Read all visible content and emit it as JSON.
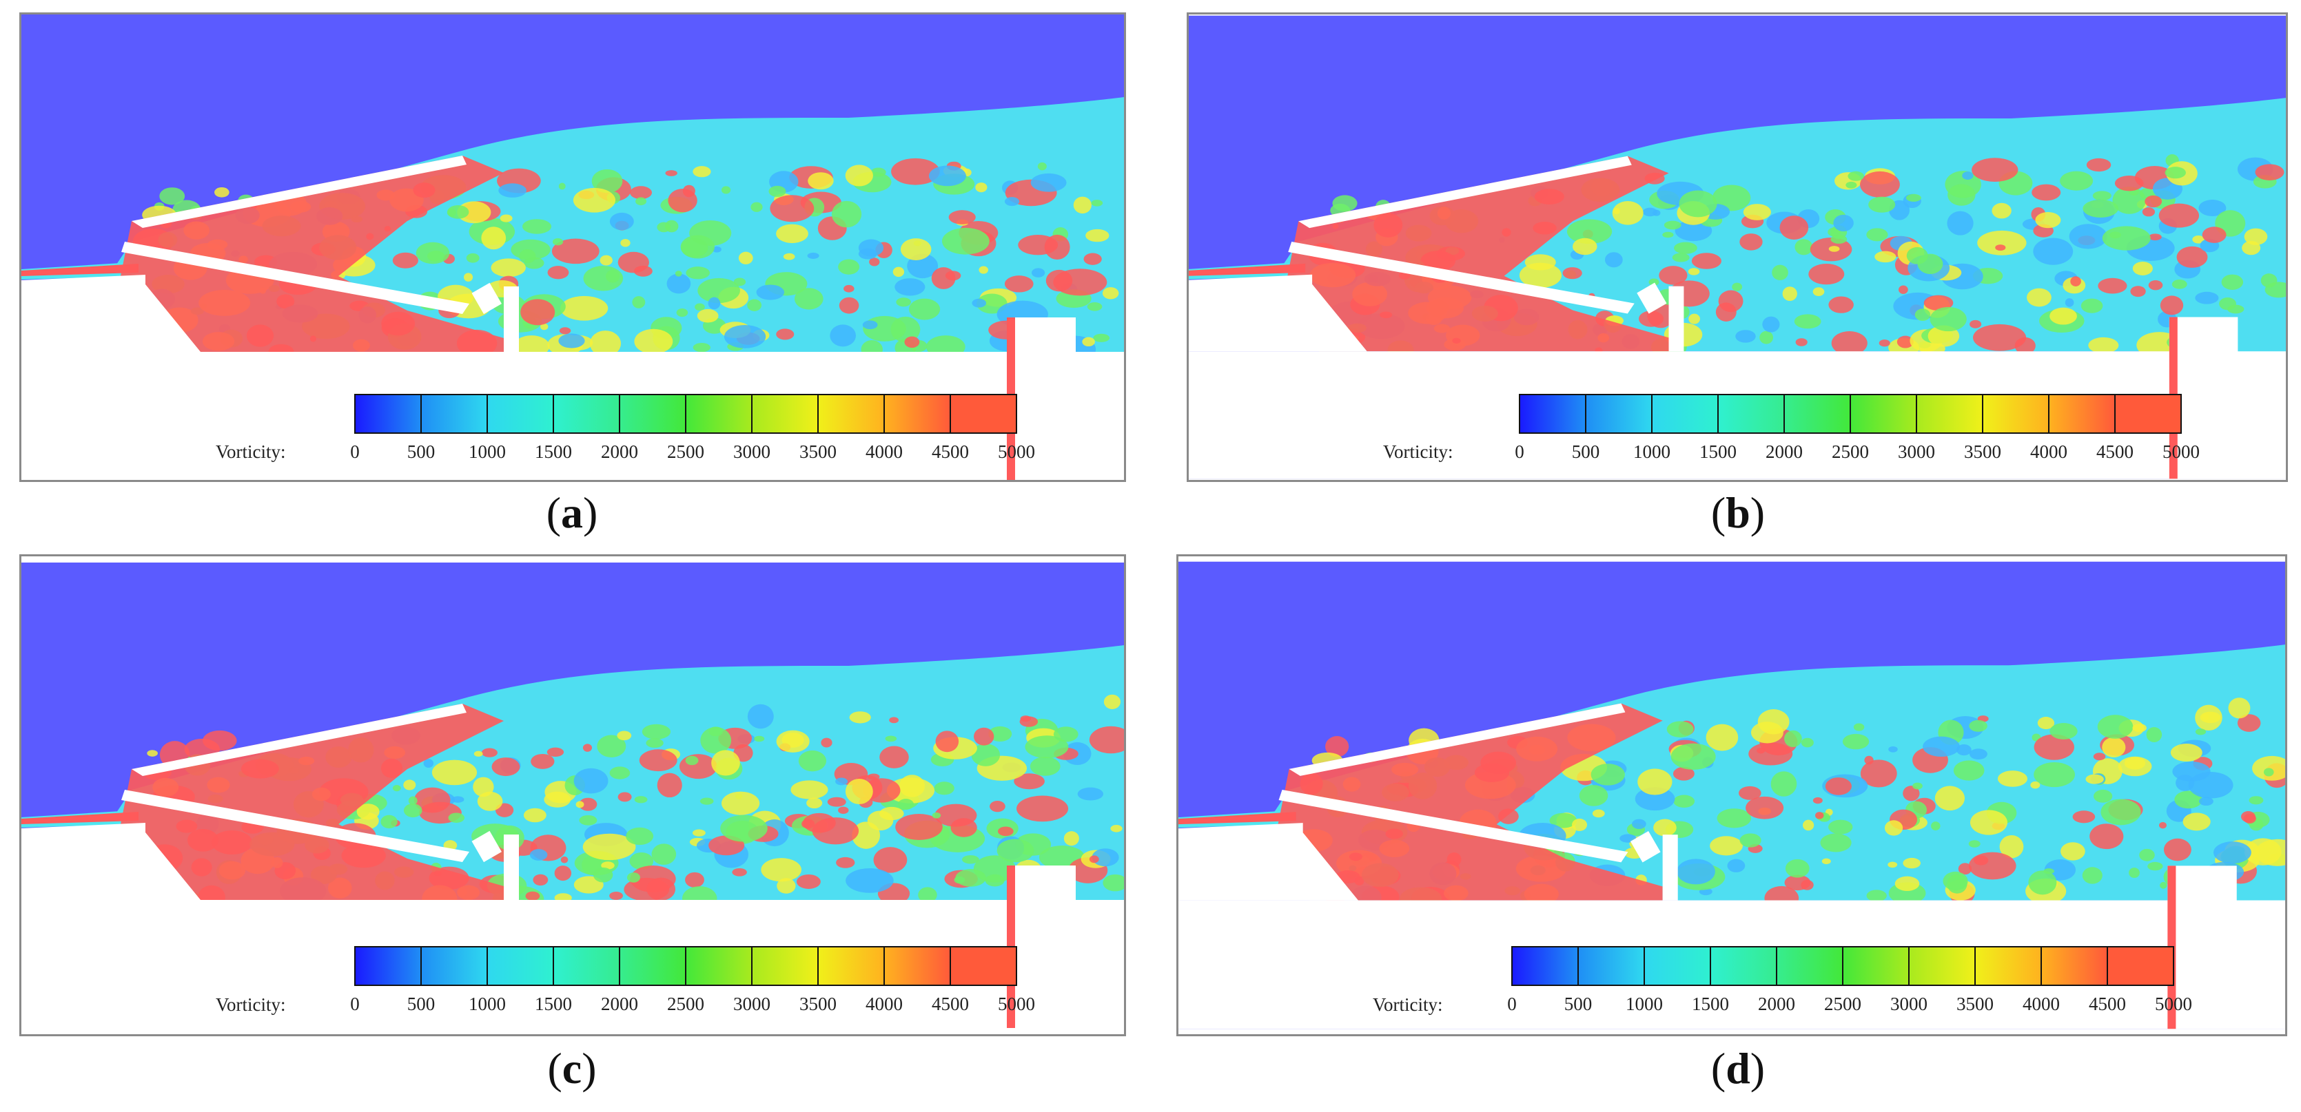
{
  "figure": {
    "panels": [
      {
        "id": "a",
        "label": "a"
      },
      {
        "id": "b",
        "label": "b"
      },
      {
        "id": "c",
        "label": "c"
      },
      {
        "id": "d",
        "label": "d"
      }
    ],
    "colorbar": {
      "title": "Vorticity:",
      "ticks": [
        "0",
        "500",
        "1000",
        "1500",
        "2000",
        "2500",
        "3000",
        "3500",
        "4000",
        "4500",
        "5000"
      ],
      "colors": [
        "#1a1aff",
        "#1f8ef5",
        "#2fd8ef",
        "#2ff0d0",
        "#36ec8f",
        "#43e83a",
        "#a8ea1e",
        "#f0f01a",
        "#ffb21f",
        "#ff5a3a"
      ]
    },
    "palette": {
      "background_flow": "#5b5bff",
      "low": "#4fe6f0",
      "mid": "#6ff06a",
      "yellow": "#f6f13a",
      "high": "#ff5a5a",
      "solid": "#ffffff"
    }
  }
}
